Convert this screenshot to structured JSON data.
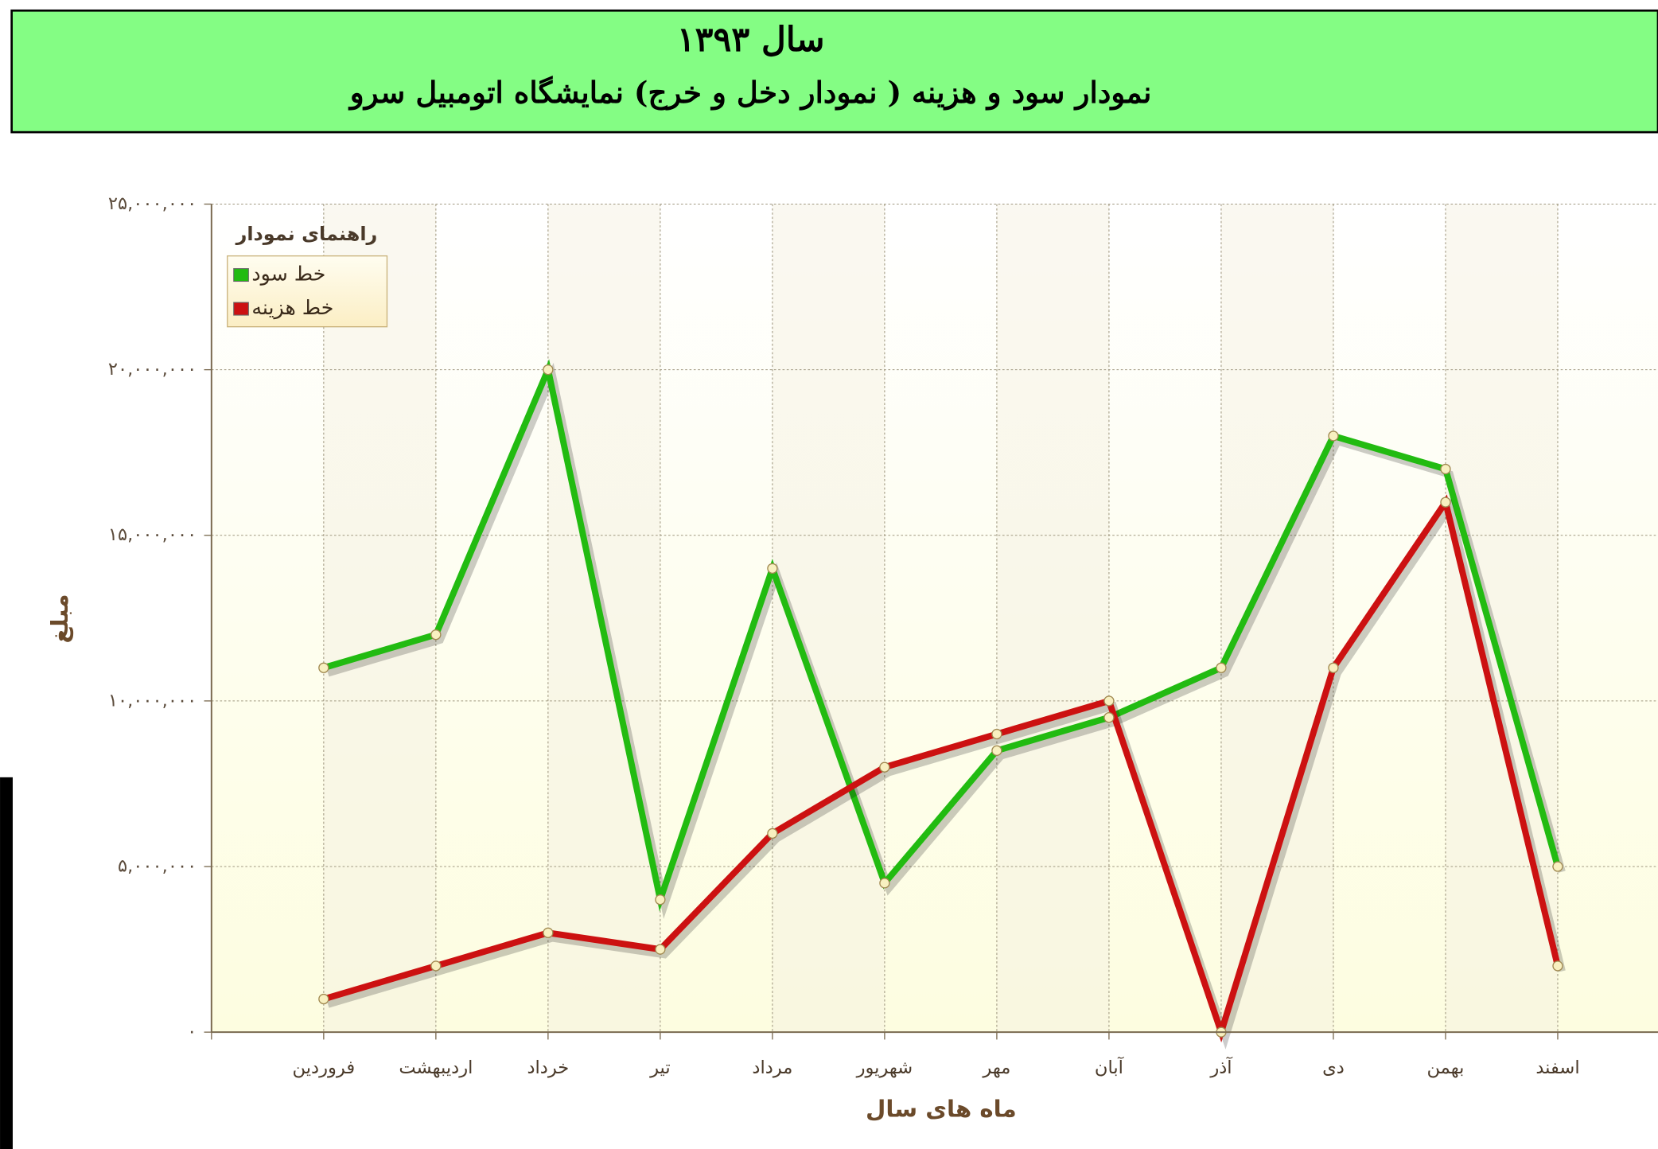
{
  "chart_data": {
    "type": "line",
    "title": "سال ۱۳۹۳",
    "subtitle": "نمودار سود و هزینه ( نمودار دخل و خرج) نمایشگاه اتومبیل سرو",
    "x_label": "ماه های سال",
    "y_label": "مبلغ",
    "legend_title": "راهنمای نمودار",
    "legend": "top-left",
    "grid": true,
    "categories": [
      "فروردین",
      "اردیبهشت",
      "خرداد",
      "تیر",
      "مرداد",
      "شهریور",
      "مهر",
      "آبان",
      "آذر",
      "دی",
      "بهمن",
      "اسفند"
    ],
    "series": [
      {
        "name": "خط سود",
        "color": "#22bb11",
        "values": [
          11000000,
          12000000,
          20000000,
          4000000,
          14000000,
          4500000,
          8500000,
          9500000,
          11000000,
          18000000,
          17000000,
          5000000
        ]
      },
      {
        "name": "خط هزینه",
        "color": "#cc1111",
        "values": [
          1000000,
          2000000,
          3000000,
          2500000,
          6000000,
          8000000,
          9000000,
          10000000,
          0,
          11000000,
          16000000,
          2000000
        ]
      }
    ],
    "ylim": [
      0,
      25000000
    ],
    "yticks": [
      {
        "value": 0,
        "label": "۰"
      },
      {
        "value": 5000000,
        "label": "۵,۰۰۰,۰۰۰"
      },
      {
        "value": 10000000,
        "label": "۱۰,۰۰۰,۰۰۰"
      },
      {
        "value": 15000000,
        "label": "۱۵,۰۰۰,۰۰۰"
      },
      {
        "value": 20000000,
        "label": "۲۰,۰۰۰,۰۰۰"
      },
      {
        "value": 25000000,
        "label": "۲۵,۰۰۰,۰۰۰"
      }
    ]
  }
}
